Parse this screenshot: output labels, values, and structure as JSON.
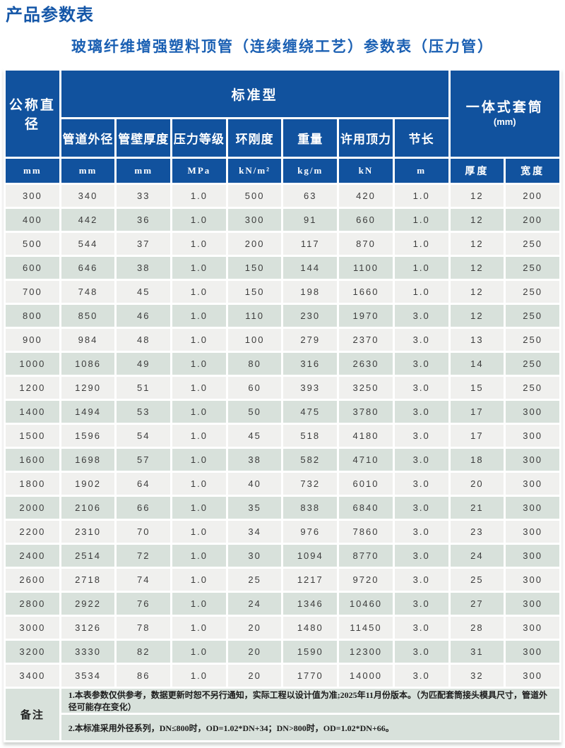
{
  "page": {
    "title": "产品参数表",
    "subtitle": "玻璃纤维增强塑料顶管（连续缠绕工艺）参数表（压力管）"
  },
  "table": {
    "header": {
      "nominal_diameter": "公称直径",
      "standard_group": "标准型",
      "sleeve_group": "一体式套筒",
      "sleeve_group_unit": "(mm)",
      "sub_columns": [
        "管道外径",
        "管壁厚度",
        "压力等级",
        "环刚度",
        "重量",
        "许用顶力",
        "节长"
      ],
      "units": [
        "mm",
        "mm",
        "mm",
        "MPa",
        "kN/m²",
        "kg/m",
        "kN",
        "m",
        "厚度",
        "宽度"
      ]
    },
    "rows": [
      [
        "300",
        "340",
        "33",
        "1.0",
        "500",
        "63",
        "420",
        "1.0",
        "12",
        "200"
      ],
      [
        "400",
        "442",
        "36",
        "1.0",
        "300",
        "91",
        "660",
        "1.0",
        "12",
        "200"
      ],
      [
        "500",
        "544",
        "37",
        "1.0",
        "200",
        "117",
        "870",
        "1.0",
        "12",
        "250"
      ],
      [
        "600",
        "646",
        "38",
        "1.0",
        "150",
        "144",
        "1100",
        "1.0",
        "12",
        "250"
      ],
      [
        "700",
        "748",
        "45",
        "1.0",
        "150",
        "198",
        "1660",
        "1.0",
        "12",
        "250"
      ],
      [
        "800",
        "850",
        "46",
        "1.0",
        "110",
        "230",
        "1970",
        "3.0",
        "12",
        "250"
      ],
      [
        "900",
        "984",
        "48",
        "1.0",
        "100",
        "279",
        "2370",
        "3.0",
        "13",
        "250"
      ],
      [
        "1000",
        "1086",
        "49",
        "1.0",
        "80",
        "316",
        "2630",
        "3.0",
        "14",
        "250"
      ],
      [
        "1200",
        "1290",
        "51",
        "1.0",
        "60",
        "393",
        "3250",
        "3.0",
        "15",
        "250"
      ],
      [
        "1400",
        "1494",
        "53",
        "1.0",
        "50",
        "475",
        "3780",
        "3.0",
        "17",
        "300"
      ],
      [
        "1500",
        "1596",
        "54",
        "1.0",
        "45",
        "518",
        "4180",
        "3.0",
        "17",
        "300"
      ],
      [
        "1600",
        "1698",
        "57",
        "1.0",
        "38",
        "582",
        "4710",
        "3.0",
        "18",
        "300"
      ],
      [
        "1800",
        "1902",
        "64",
        "1.0",
        "40",
        "732",
        "6010",
        "3.0",
        "20",
        "300"
      ],
      [
        "2000",
        "2106",
        "66",
        "1.0",
        "35",
        "838",
        "6840",
        "3.0",
        "21",
        "300"
      ],
      [
        "2200",
        "2310",
        "70",
        "1.0",
        "34",
        "976",
        "7860",
        "3.0",
        "23",
        "300"
      ],
      [
        "2400",
        "2514",
        "72",
        "1.0",
        "30",
        "1094",
        "8770",
        "3.0",
        "24",
        "300"
      ],
      [
        "2600",
        "2718",
        "74",
        "1.0",
        "25",
        "1217",
        "9720",
        "3.0",
        "25",
        "300"
      ],
      [
        "2800",
        "2922",
        "76",
        "1.0",
        "24",
        "1346",
        "10460",
        "3.0",
        "27",
        "300"
      ],
      [
        "3000",
        "3126",
        "78",
        "1.0",
        "20",
        "1480",
        "11450",
        "3.0",
        "28",
        "300"
      ],
      [
        "3200",
        "3330",
        "82",
        "1.0",
        "20",
        "1590",
        "12300",
        "3.0",
        "31",
        "300"
      ],
      [
        "3400",
        "3534",
        "86",
        "1.0",
        "20",
        "1770",
        "14000",
        "3.0",
        "32",
        "300"
      ]
    ],
    "notes": {
      "label": "备注",
      "items": [
        "1.本表参数仅供参考，数据更新时恕不另行通知，实际工程以设计值为准;2025年11月份版本。（为匹配套筒接头模具尺寸，管道外径可能存在变化）",
        "2.本标准采用外径系列，DN≤800时，OD=1.02*DN+34；DN>800时，OD=1.02*DN+66。"
      ]
    },
    "colors": {
      "header_blue": "#11529e",
      "row_gray": "#f0f0ee",
      "row_green": "#d8e1db",
      "title_blue": "#1557a8"
    }
  }
}
